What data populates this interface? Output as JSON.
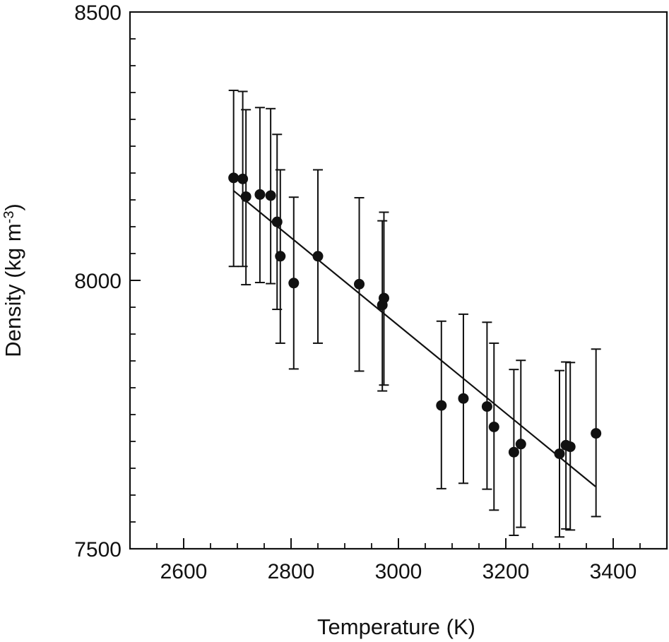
{
  "chart_data": {
    "type": "scatter",
    "title": "",
    "xlabel": "Temperature (K)",
    "ylabel_main": "Density (kg m",
    "ylabel_sup": "-3",
    "ylabel_close": ")",
    "xlim": [
      2500,
      3500
    ],
    "ylim": [
      7500,
      8500
    ],
    "x_ticks": [
      2600,
      2800,
      3000,
      3200,
      3400
    ],
    "x_tick_labels": [
      "2600",
      "2800",
      "3000",
      "3200",
      "3400"
    ],
    "y_ticks": [
      7500,
      8000,
      8500
    ],
    "y_tick_labels": [
      "7500",
      "8000",
      "8500"
    ],
    "x_minor_step": 50,
    "y_minor_step": 50,
    "grid": false,
    "marker_color": "#111111",
    "points": [
      {
        "x": 2693,
        "y": 8191,
        "ylo": 8026,
        "yhi": 8354
      },
      {
        "x": 2710,
        "y": 8189,
        "ylo": 8026,
        "yhi": 8352
      },
      {
        "x": 2716,
        "y": 8156,
        "ylo": 7992,
        "yhi": 8318
      },
      {
        "x": 2742,
        "y": 8160,
        "ylo": 7996,
        "yhi": 8322
      },
      {
        "x": 2762,
        "y": 8158,
        "ylo": 7994,
        "yhi": 8320
      },
      {
        "x": 2774,
        "y": 8109,
        "ylo": 7946,
        "yhi": 8272
      },
      {
        "x": 2780,
        "y": 8045,
        "ylo": 7883,
        "yhi": 8206
      },
      {
        "x": 2805,
        "y": 7995,
        "ylo": 7835,
        "yhi": 8155
      },
      {
        "x": 2850,
        "y": 8045,
        "ylo": 7883,
        "yhi": 8206
      },
      {
        "x": 2927,
        "y": 7993,
        "ylo": 7831,
        "yhi": 8154
      },
      {
        "x": 2970,
        "y": 7954,
        "ylo": 7794,
        "yhi": 8111
      },
      {
        "x": 2973,
        "y": 7967,
        "ylo": 7805,
        "yhi": 8127
      },
      {
        "x": 3080,
        "y": 7767,
        "ylo": 7612,
        "yhi": 7924
      },
      {
        "x": 3121,
        "y": 7780,
        "ylo": 7622,
        "yhi": 7937
      },
      {
        "x": 3165,
        "y": 7765,
        "ylo": 7611,
        "yhi": 7922
      },
      {
        "x": 3178,
        "y": 7727,
        "ylo": 7572,
        "yhi": 7883
      },
      {
        "x": 3215,
        "y": 7680,
        "ylo": 7525,
        "yhi": 7834
      },
      {
        "x": 3228,
        "y": 7695,
        "ylo": 7540,
        "yhi": 7851
      },
      {
        "x": 3300,
        "y": 7677,
        "ylo": 7522,
        "yhi": 7832
      },
      {
        "x": 3312,
        "y": 7693,
        "ylo": 7537,
        "yhi": 7848
      },
      {
        "x": 3320,
        "y": 7690,
        "ylo": 7535,
        "yhi": 7847
      },
      {
        "x": 3368,
        "y": 7715,
        "ylo": 7560,
        "yhi": 7872
      }
    ],
    "fit_line": {
      "x": [
        2693,
        3367
      ],
      "y": [
        8167,
        7616
      ]
    }
  }
}
